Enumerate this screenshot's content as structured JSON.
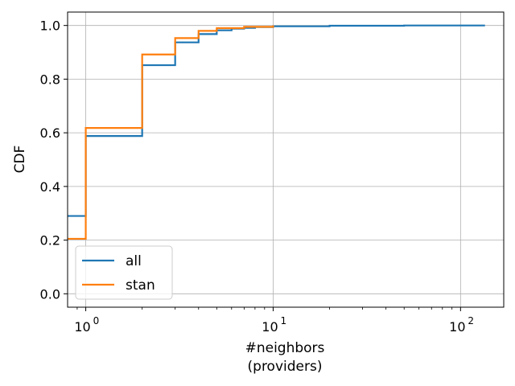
{
  "chart_data": {
    "type": "line",
    "step": true,
    "xlabel": "#neighbors",
    "xlabel_line2": "(providers)",
    "ylabel": "CDF",
    "xscale": "log",
    "xlim": [
      0.8,
      170
    ],
    "ylim": [
      -0.05,
      1.05
    ],
    "x_ticks": [
      {
        "value": 1,
        "base": "10",
        "exp": "0"
      },
      {
        "value": 10,
        "base": "10",
        "exp": "1"
      },
      {
        "value": 100,
        "base": "10",
        "exp": "2"
      }
    ],
    "y_ticks": [
      {
        "value": 0.0,
        "label": "0.0"
      },
      {
        "value": 0.2,
        "label": "0.2"
      },
      {
        "value": 0.4,
        "label": "0.4"
      },
      {
        "value": 0.6,
        "label": "0.6"
      },
      {
        "value": 0.8,
        "label": "0.8"
      },
      {
        "value": 1.0,
        "label": "1.0"
      }
    ],
    "grid": true,
    "legend": {
      "position": "lower-left"
    },
    "series": [
      {
        "name": "all",
        "color": "#1f77b4",
        "x": [
          0.8,
          1,
          2,
          3,
          4,
          5,
          6,
          7,
          8,
          10,
          20,
          50,
          135
        ],
        "y": [
          0.29,
          0.588,
          0.852,
          0.937,
          0.968,
          0.982,
          0.988,
          0.991,
          0.994,
          0.997,
          0.999,
          1.0,
          1.0
        ]
      },
      {
        "name": "stan",
        "color": "#ff7f0e",
        "x": [
          0.8,
          1,
          2,
          3,
          4,
          5,
          7,
          10
        ],
        "y": [
          0.205,
          0.618,
          0.892,
          0.953,
          0.98,
          0.99,
          0.995,
          1.0
        ]
      }
    ]
  }
}
